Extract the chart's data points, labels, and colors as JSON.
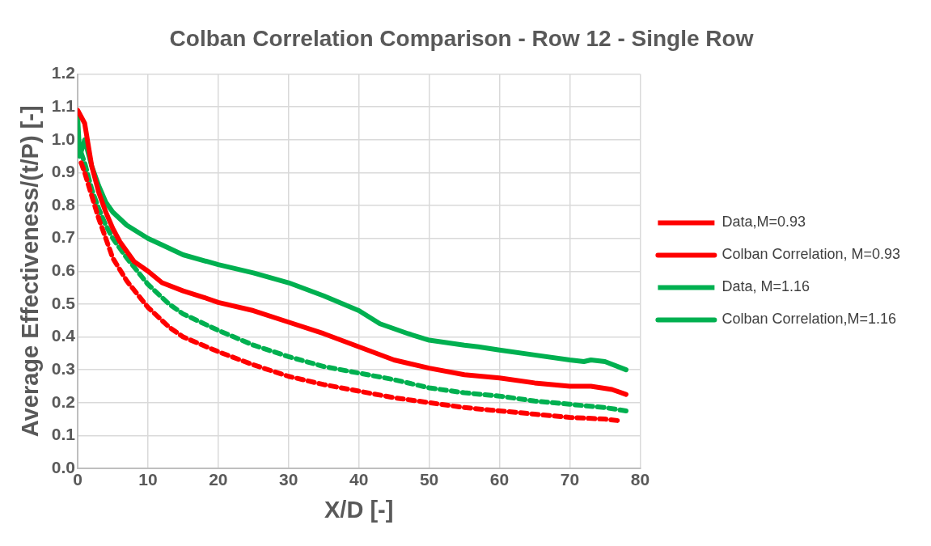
{
  "chart_data": {
    "type": "line",
    "title": "Colban Correlation Comparison - Row 12 - Single Row",
    "xlabel": "X/D [-]",
    "ylabel": "Average Effectiveness/(t/P) [-]",
    "xlim": [
      0,
      80
    ],
    "xticks": [
      0,
      10,
      20,
      30,
      40,
      50,
      60,
      70,
      80
    ],
    "ylim": [
      0,
      1.2
    ],
    "yticks": [
      {
        "value": 0,
        "label": "0.0"
      },
      0.1,
      0.2,
      0.3,
      0.4,
      0.5,
      0.6,
      0.7,
      0.8,
      0.9,
      {
        "value": 1,
        "label": "1.0"
      },
      1.1,
      1.2
    ],
    "grid": true,
    "legend": "right",
    "marker": "none",
    "series": [
      {
        "name": "Data,M=0.93",
        "color": "#ff0000",
        "line_style": "solid",
        "x": [
          0,
          1,
          2,
          3,
          4,
          5,
          6,
          8,
          10,
          12,
          15,
          18,
          20,
          25,
          30,
          35,
          40,
          45,
          50,
          55,
          60,
          65,
          70,
          73,
          76,
          78
        ],
        "values": [
          1.09,
          1.05,
          0.92,
          0.84,
          0.78,
          0.73,
          0.69,
          0.63,
          0.6,
          0.565,
          0.54,
          0.52,
          0.505,
          0.48,
          0.445,
          0.41,
          0.37,
          0.33,
          0.305,
          0.285,
          0.275,
          0.26,
          0.25,
          0.25,
          0.24,
          0.225
        ]
      },
      {
        "name": "Colban Correlation, M=0.93",
        "color": "#ff0000",
        "line_style": "dashed",
        "x": [
          0.5,
          1,
          2,
          3,
          4,
          5,
          7,
          10,
          13,
          15,
          20,
          25,
          30,
          35,
          40,
          45,
          50,
          55,
          60,
          65,
          70,
          75,
          77
        ],
        "values": [
          0.93,
          0.9,
          0.83,
          0.76,
          0.7,
          0.64,
          0.57,
          0.49,
          0.43,
          0.4,
          0.355,
          0.315,
          0.28,
          0.255,
          0.235,
          0.215,
          0.2,
          0.185,
          0.175,
          0.165,
          0.155,
          0.15,
          0.145
        ]
      },
      {
        "name": "Data, M=1.16",
        "color": "#00b050",
        "line_style": "solid",
        "x": [
          0,
          0.3,
          1,
          2,
          3,
          4,
          5,
          7,
          10,
          12,
          15,
          20,
          25,
          30,
          35,
          40,
          43,
          47,
          50,
          55,
          57,
          60,
          65,
          70,
          72,
          73,
          75,
          78
        ],
        "values": [
          1.07,
          0.95,
          1.0,
          0.92,
          0.86,
          0.81,
          0.78,
          0.74,
          0.7,
          0.68,
          0.65,
          0.62,
          0.595,
          0.565,
          0.525,
          0.48,
          0.44,
          0.41,
          0.39,
          0.375,
          0.37,
          0.36,
          0.345,
          0.33,
          0.325,
          0.33,
          0.325,
          0.3
        ]
      },
      {
        "name": "Colban Correlation,M=1.16",
        "color": "#00b050",
        "line_style": "dashed",
        "x": [
          0.5,
          1,
          2,
          3,
          4,
          5,
          7,
          10,
          13,
          15,
          20,
          25,
          30,
          35,
          40,
          45,
          50,
          55,
          60,
          65,
          70,
          75,
          78
        ],
        "values": [
          0.96,
          0.93,
          0.85,
          0.79,
          0.74,
          0.7,
          0.64,
          0.56,
          0.5,
          0.47,
          0.42,
          0.375,
          0.34,
          0.31,
          0.29,
          0.27,
          0.245,
          0.23,
          0.22,
          0.205,
          0.195,
          0.185,
          0.175
        ]
      }
    ]
  }
}
